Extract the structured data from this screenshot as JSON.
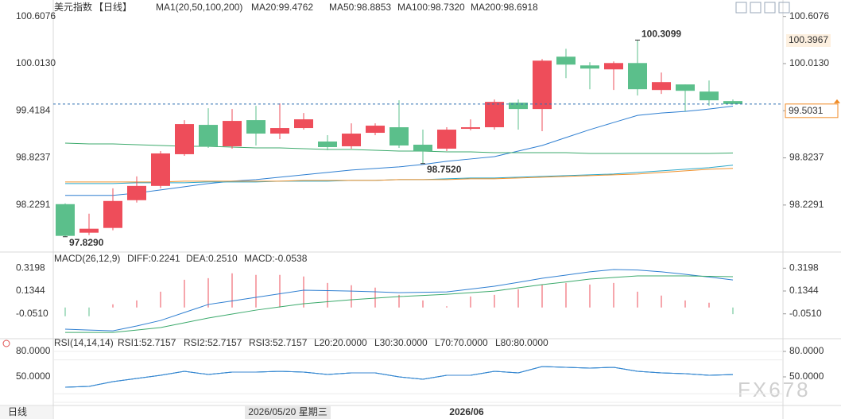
{
  "chart_data": [
    {
      "type": "candlestick",
      "title": "美元指数",
      "period": "【日线】",
      "indicator": "MA1(20,50,100,200)",
      "up_color": "#ee4d5a",
      "down_color": "#5bbf8b",
      "open": [
        98.24,
        97.88,
        97.94,
        98.29,
        98.47,
        98.87,
        99.24,
        98.97,
        99.3,
        99.13,
        99.2,
        99.03,
        98.97,
        99.14,
        99.21,
        98.99,
        98.94,
        99.19,
        99.21,
        99.52,
        99.44,
        100.1,
        99.99,
        99.94,
        100.02,
        99.68,
        99.75,
        99.66,
        99.54
      ],
      "high": [
        98.25,
        98.12,
        98.44,
        98.59,
        98.91,
        99.3,
        99.45,
        99.44,
        99.48,
        99.51,
        99.39,
        99.11,
        99.26,
        99.26,
        99.55,
        99.18,
        99.21,
        99.31,
        99.56,
        99.56,
        100.07,
        100.2,
        100.03,
        100.04,
        100.3099,
        99.9,
        99.75,
        99.8,
        99.56
      ],
      "low": [
        97.829,
        97.85,
        97.91,
        98.26,
        98.44,
        98.85,
        98.95,
        98.94,
        98.98,
        99.06,
        99.18,
        98.92,
        98.94,
        99.11,
        98.95,
        98.752,
        98.91,
        99.17,
        99.18,
        99.18,
        99.16,
        99.83,
        99.69,
        99.68,
        99.61,
        99.63,
        99.41,
        99.48,
        99.5
      ],
      "close": [
        97.84,
        97.93,
        98.28,
        98.47,
        98.88,
        99.25,
        98.97,
        99.29,
        99.13,
        99.2,
        99.31,
        98.96,
        99.13,
        99.23,
        98.98,
        98.91,
        99.18,
        99.21,
        99.53,
        99.44,
        100.05,
        100.0,
        99.95,
        100.02,
        99.69,
        99.78,
        99.67,
        99.55,
        99.5031
      ],
      "series": [
        {
          "name": "MA20:99.4762",
          "color": "#2f7fd1",
          "values": [
            98.35,
            98.35,
            98.35,
            98.38,
            98.42,
            98.46,
            98.5,
            98.53,
            98.55,
            98.58,
            98.61,
            98.64,
            98.67,
            98.69,
            98.71,
            98.74,
            98.78,
            98.81,
            98.84,
            98.91,
            98.98,
            99.08,
            99.18,
            99.27,
            99.36,
            99.39,
            99.41,
            99.44,
            99.4762
          ]
        },
        {
          "name": "MA50:98.8853",
          "color": "#3caa6c",
          "values": [
            99.01,
            99.0,
            99.0,
            98.99,
            98.98,
            98.97,
            98.97,
            98.96,
            98.95,
            98.95,
            98.94,
            98.93,
            98.93,
            98.92,
            98.91,
            98.91,
            98.9,
            98.9,
            98.89,
            98.89,
            98.89,
            98.89,
            98.88,
            98.88,
            98.88,
            98.88,
            98.88,
            98.88,
            98.8853
          ]
        },
        {
          "name": "MA100:98.7320",
          "color": "#2aa6c8",
          "values": [
            98.5,
            98.5,
            98.5,
            98.51,
            98.51,
            98.51,
            98.52,
            98.52,
            98.52,
            98.53,
            98.53,
            98.53,
            98.54,
            98.54,
            98.55,
            98.55,
            98.56,
            98.57,
            98.57,
            98.58,
            98.59,
            98.6,
            98.61,
            98.62,
            98.64,
            98.66,
            98.68,
            98.7,
            98.732
          ]
        },
        {
          "name": "MA200:98.6918",
          "color": "#f0922e",
          "values": [
            98.52,
            98.52,
            98.52,
            98.52,
            98.52,
            98.53,
            98.53,
            98.53,
            98.53,
            98.53,
            98.54,
            98.54,
            98.54,
            98.54,
            98.55,
            98.55,
            98.55,
            98.56,
            98.56,
            98.57,
            98.58,
            98.59,
            98.6,
            98.61,
            98.62,
            98.64,
            98.66,
            98.68,
            98.6918
          ]
        }
      ],
      "ylim": [
        97.646,
        100.765
      ],
      "yticks": [
        100.6076,
        {
          "value": 100.013,
          "label": "100.0130"
        },
        99.4184,
        98.8237,
        98.2291
      ],
      "last_price": 99.5031,
      "marker_label": "100.3967",
      "annotations": [
        {
          "value": 100.3099,
          "label": "100.3099"
        },
        {
          "value": 97.829,
          "label": "97.8290"
        },
        {
          "value": 98.752,
          "label": "98.7520"
        }
      ]
    },
    {
      "type": "macd",
      "title": "MACD(26,12,9)",
      "up_color": "#ee4d5a",
      "down_color": "#5bbf8b",
      "histogram": {
        "name": "MACD:-0.0538",
        "color": "#2aa6c8",
        "values": [
          -0.071,
          -0.071,
          0.026,
          0.058,
          0.129,
          0.226,
          0.239,
          0.278,
          0.265,
          0.265,
          0.252,
          0.2,
          0.181,
          0.162,
          0.103,
          0.058,
          0.01,
          0.09,
          0.103,
          0.149,
          0.187,
          0.2,
          0.187,
          0.2,
          0.129,
          0.097,
          0.058,
          0.039,
          -0.0538
        ]
      },
      "series": [
        {
          "name": "DIFF:0.2241",
          "color": "#2f7fd1",
          "values": [
            -0.176,
            -0.183,
            -0.189,
            -0.15,
            -0.105,
            -0.04,
            0.025,
            0.054,
            0.083,
            0.112,
            0.141,
            0.138,
            0.134,
            0.128,
            0.121,
            0.124,
            0.127,
            0.15,
            0.173,
            0.205,
            0.238,
            0.264,
            0.29,
            0.309,
            0.305,
            0.29,
            0.27,
            0.248,
            0.2241
          ]
        },
        {
          "name": "DEA:0.2510",
          "color": "#3caa6c",
          "values": [
            -0.202,
            -0.202,
            -0.202,
            -0.183,
            -0.163,
            -0.124,
            -0.085,
            -0.053,
            -0.021,
            0.005,
            0.031,
            0.047,
            0.063,
            0.076,
            0.089,
            0.098,
            0.108,
            0.121,
            0.134,
            0.16,
            0.186,
            0.208,
            0.231,
            0.244,
            0.257,
            0.257,
            0.257,
            0.254,
            0.251
          ]
        }
      ],
      "ylim": [
        -0.2467,
        0.4316
      ],
      "yticks": [
        0.3198,
        0.1344,
        {
          "value": -0.051,
          "label": "-0.0510"
        }
      ]
    },
    {
      "type": "rsi",
      "title": "RSI(14,14,14)",
      "series": [
        {
          "name": "RSI1:52.7157",
          "color": "#2aa0d0",
          "values": [
            37.8,
            38.8,
            44.4,
            48.1,
            51.9,
            56.6,
            52.8,
            55.6,
            55.6,
            56.6,
            55.6,
            52.8,
            54.7,
            54.7,
            50.0,
            47.2,
            51.9,
            51.9,
            56.6,
            54.7,
            62.2,
            61.3,
            60.3,
            61.3,
            56.6,
            54.7,
            53.8,
            51.9,
            52.7157
          ]
        },
        {
          "name": "RSI2:52.7157",
          "color": "#2f8fd8",
          "values": [
            37.8,
            38.8,
            44.4,
            48.1,
            51.9,
            56.6,
            52.8,
            55.6,
            55.6,
            56.6,
            55.6,
            52.8,
            54.7,
            54.7,
            50.0,
            47.2,
            51.9,
            51.9,
            56.6,
            54.7,
            62.2,
            61.3,
            60.3,
            61.3,
            56.6,
            54.7,
            53.8,
            51.9,
            52.7157
          ]
        },
        {
          "name": "RSI3:52.7157",
          "color": "#3a86d0",
          "values": [
            37.8,
            38.8,
            44.4,
            48.1,
            51.9,
            56.6,
            52.8,
            55.6,
            55.6,
            56.6,
            55.6,
            52.8,
            54.7,
            54.7,
            50.0,
            47.2,
            51.9,
            51.9,
            56.6,
            54.7,
            62.2,
            61.3,
            60.3,
            61.3,
            56.6,
            54.7,
            53.8,
            51.9,
            52.7157
          ]
        }
      ],
      "levels": [
        {
          "value": 20,
          "label": "L20:20.0000"
        },
        {
          "value": 30,
          "label": "L30:30.0000"
        },
        {
          "value": 70,
          "label": "L70:70.0000"
        },
        {
          "value": 80,
          "label": "L80:80.0000"
        }
      ],
      "ylim": [
        16.25,
        91.25
      ],
      "yticks": [
        {
          "value": 80,
          "label": "80.0000"
        },
        {
          "value": 50,
          "label": "50.0000"
        }
      ]
    }
  ],
  "footer": {
    "period": "日线",
    "cursor_date": "2026/05/20 星期三",
    "month": "2026/06",
    "watermark": "FX678"
  }
}
